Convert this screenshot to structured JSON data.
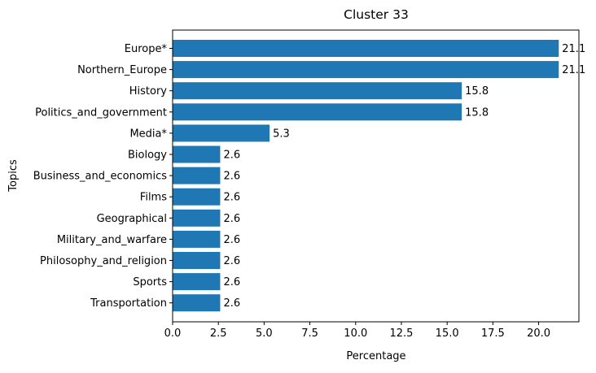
{
  "chart_data": {
    "type": "bar",
    "orientation": "horizontal",
    "title": "Cluster 33",
    "xlabel": "Percentage",
    "ylabel": "Topics",
    "xlim": [
      0,
      22.2
    ],
    "xticks": [
      0.0,
      2.5,
      5.0,
      7.5,
      10.0,
      12.5,
      15.0,
      17.5,
      20.0
    ],
    "xtick_labels": [
      "0.0",
      "2.5",
      "5.0",
      "7.5",
      "10.0",
      "12.5",
      "15.0",
      "17.5",
      "20.0"
    ],
    "grid": false,
    "categories": [
      "Europe*",
      "Northern_Europe",
      "History",
      "Politics_and_government",
      "Media*",
      "Biology",
      "Business_and_economics",
      "Films",
      "Geographical",
      "Military_and_warfare",
      "Philosophy_and_religion",
      "Sports",
      "Transportation"
    ],
    "values": [
      21.1,
      21.1,
      15.8,
      15.8,
      5.3,
      2.6,
      2.6,
      2.6,
      2.6,
      2.6,
      2.6,
      2.6,
      2.6
    ],
    "value_labels": [
      "21.1",
      "21.1",
      "15.8",
      "15.8",
      "5.3",
      "2.6",
      "2.6",
      "2.6",
      "2.6",
      "2.6",
      "2.6",
      "2.6",
      "2.6"
    ],
    "bar_color": "#1f77b4"
  }
}
